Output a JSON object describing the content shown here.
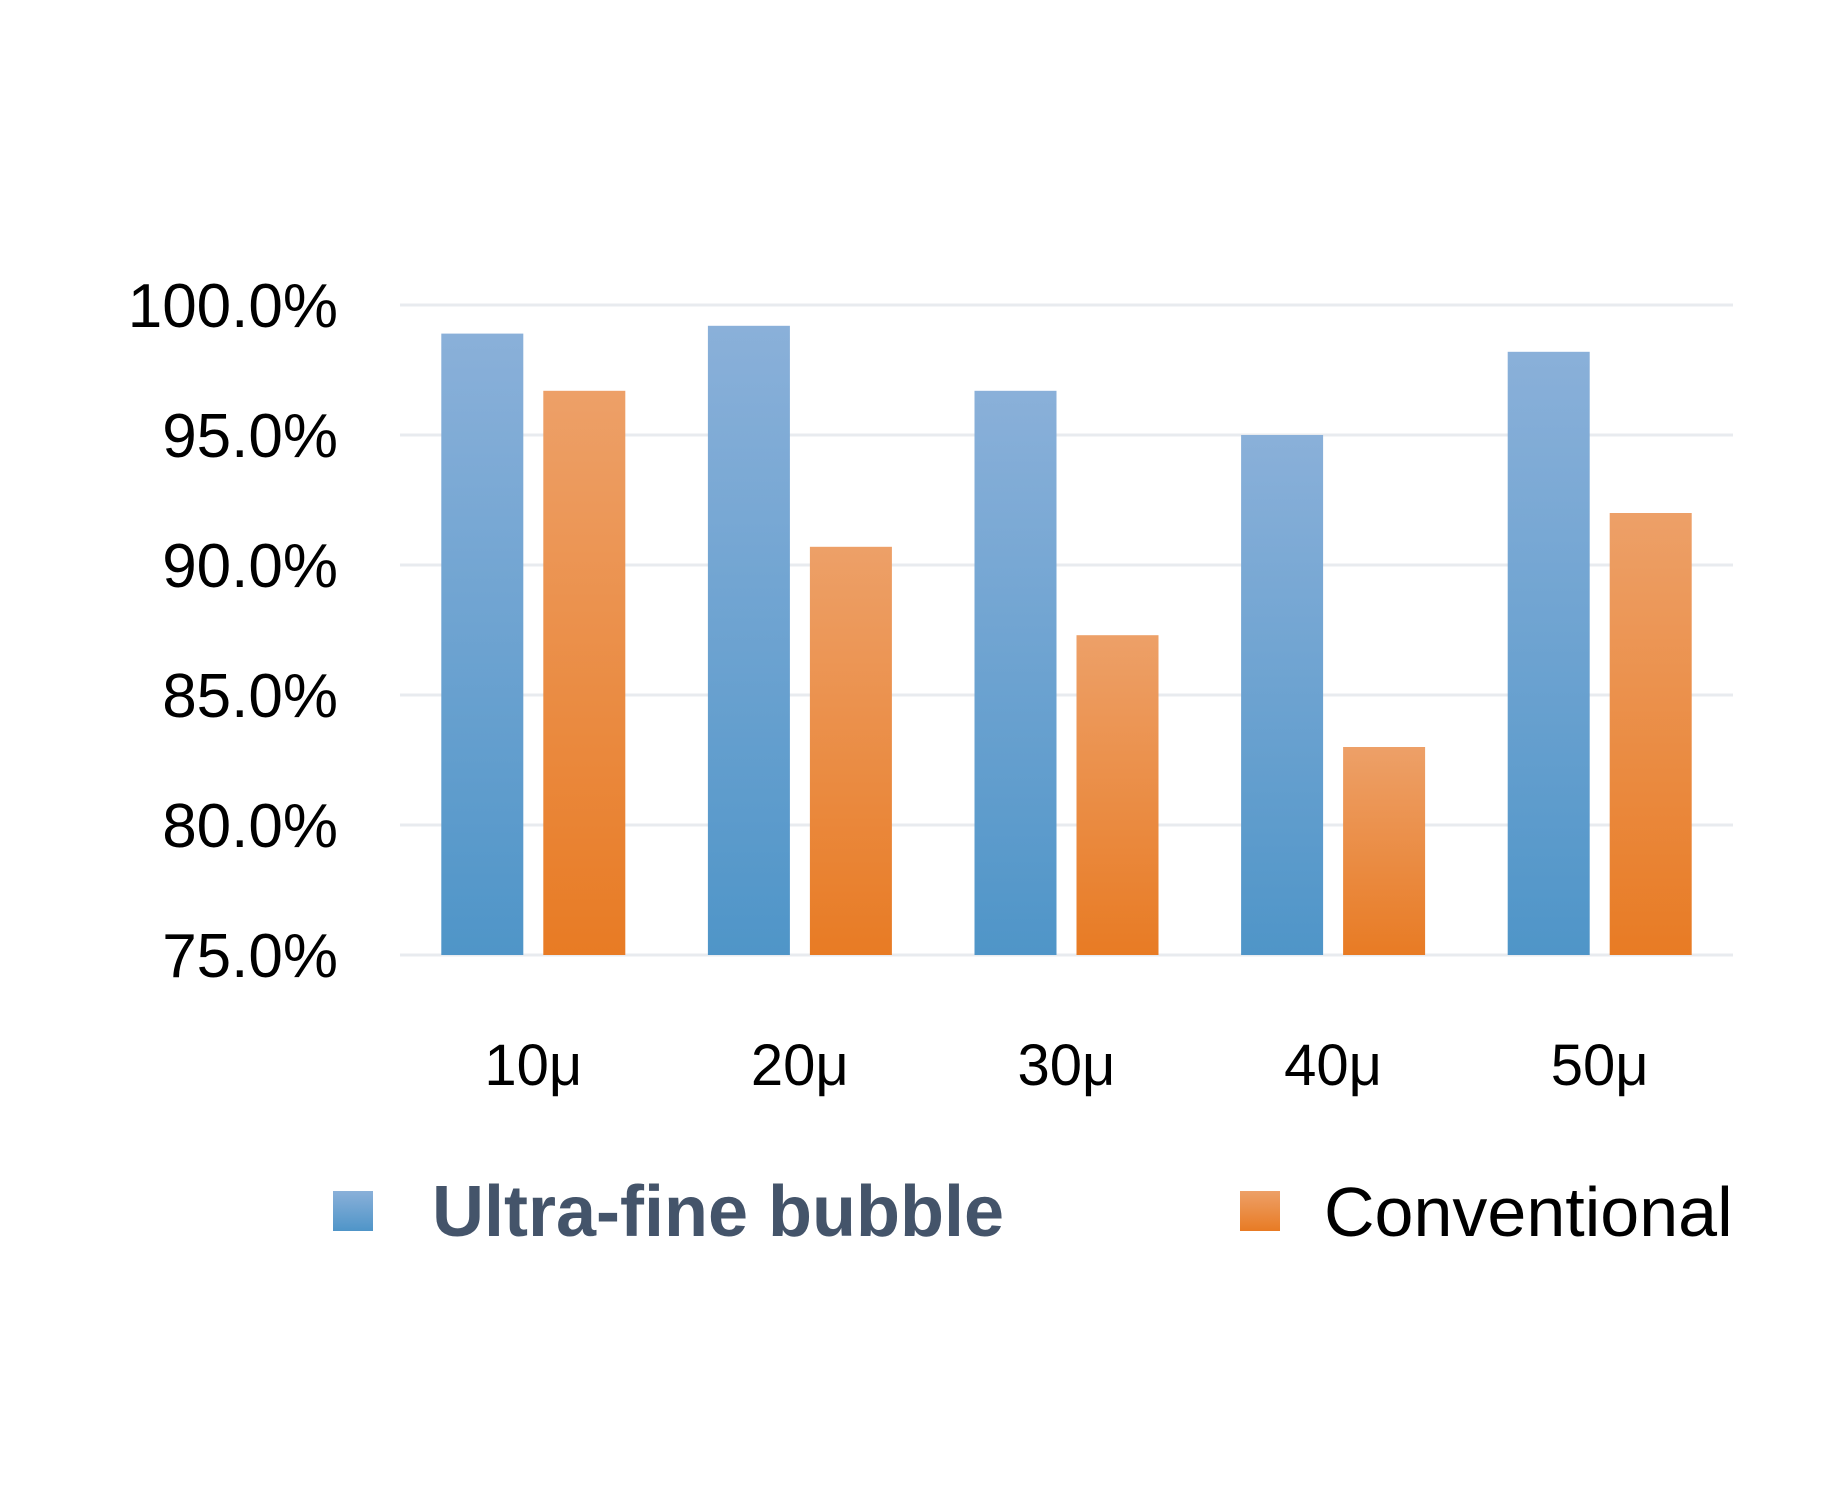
{
  "chart_data": {
    "type": "bar",
    "categories": [
      "10μ",
      "20μ",
      "30μ",
      "40μ",
      "50μ"
    ],
    "series": [
      {
        "name": "Ultra-fine bubble",
        "values": [
          98.9,
          99.2,
          96.7,
          95.0,
          98.2
        ],
        "color": "#5b9bd5"
      },
      {
        "name": "Conventional",
        "values": [
          96.7,
          90.7,
          87.3,
          83.0,
          92.0
        ],
        "color": "#ed7d31"
      }
    ],
    "ylim": [
      75.0,
      100.0
    ],
    "yticks": [
      "75.0%",
      "80.0%",
      "85.0%",
      "90.0%",
      "95.0%",
      "100.0%"
    ],
    "ytick_values": [
      75,
      80,
      85,
      90,
      95,
      100
    ],
    "grid": true,
    "legend_position": "bottom",
    "gridline_color": "#e8ebef"
  }
}
